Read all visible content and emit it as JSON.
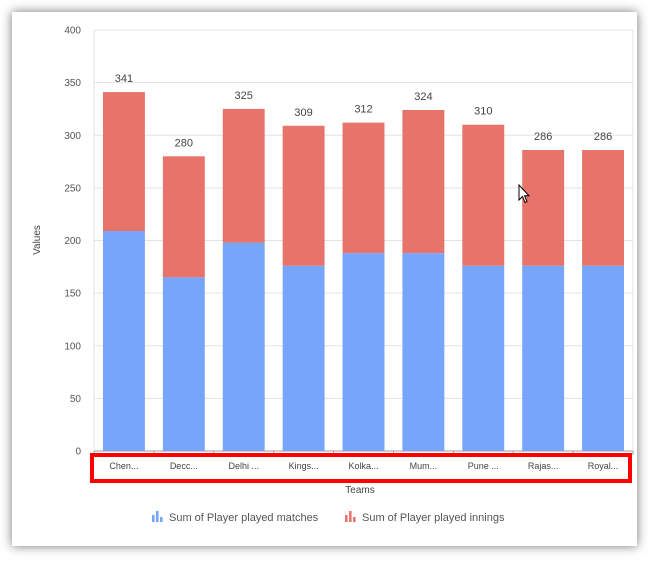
{
  "chart_data": {
    "type": "bar",
    "stacked": true,
    "xlabel": "Teams",
    "ylabel": "Values",
    "ylim": [
      0,
      400
    ],
    "yticks": [
      "0",
      "50",
      "100",
      "150",
      "200",
      "250",
      "300",
      "350",
      "400"
    ],
    "categories": [
      "Chen...",
      "Decc...",
      "Delhi ...",
      "Kings...",
      "Kolka...",
      "Mum...",
      "Pune ...",
      "Rajas...",
      "Royal..."
    ],
    "totals_labels": [
      "341",
      "280",
      "325",
      "309",
      "312",
      "324",
      "310",
      "286",
      "286"
    ],
    "series": [
      {
        "name": "Sum of Player played matches",
        "color": "#77a5fb",
        "values": [
          209,
          165,
          198,
          176,
          188,
          188,
          176,
          176,
          176
        ]
      },
      {
        "name": "Sum of Player played innings",
        "color": "#e8736a",
        "values": [
          132,
          115,
          127,
          133,
          124,
          136,
          134,
          110,
          110
        ]
      }
    ],
    "grid": true,
    "legend_position": "bottom",
    "highlight_color": "#ff0000"
  }
}
